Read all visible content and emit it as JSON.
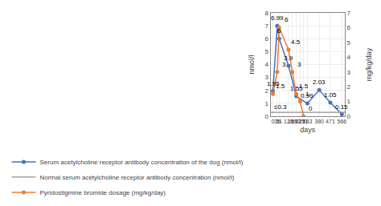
{
  "chart_data": {
    "type": "line",
    "x": [
      0,
      35,
      51,
      128,
      159,
      192,
      223,
      251,
      283,
      380,
      471,
      566
    ],
    "xlim": [
      -20,
      590
    ],
    "xticks": [
      0,
      35,
      51,
      128,
      159,
      192,
      223,
      251,
      283,
      380,
      471,
      566
    ],
    "xlabel": "days",
    "ylabel": "nmol/l",
    "y2label": "mg/kg/day",
    "ylim": [
      0,
      8
    ],
    "yticks": [
      0,
      1,
      2,
      3,
      4,
      5,
      6,
      7,
      8
    ],
    "y2lim": [
      0,
      7
    ],
    "y2ticks": [
      0,
      1,
      2,
      3,
      4,
      5,
      6,
      7
    ],
    "grid": true,
    "data_labels": true,
    "legend": "lower left",
    "series": [
      {
        "name": "Serum acetylcholine receptor antibody concentration of the dog (nmol/l)",
        "color": "#4472c4",
        "marker": "circle",
        "values": [
          1.95,
          6.99,
          6.0,
          3.9,
          null,
          1.55,
          null,
          null,
          0.99,
          2.03,
          1.05,
          0.15
        ]
      },
      {
        "name": "Pyridostigmine bromide dosage (mg/kg/day)",
        "color": "#ed7d31",
        "marker": "circle",
        "axis": "y2",
        "values": [
          1.5,
          3.0,
          6.0,
          4.5,
          3.0,
          1.5,
          1.0,
          0.0,
          null,
          null,
          null,
          null
        ]
      }
    ],
    "hlines": [
      {
        "name": "Normal serum acetylcholine receptor antibody concentration (nmol/l)",
        "value": 0.3,
        "label": "≤0.3",
        "color": "#909090"
      }
    ]
  }
}
